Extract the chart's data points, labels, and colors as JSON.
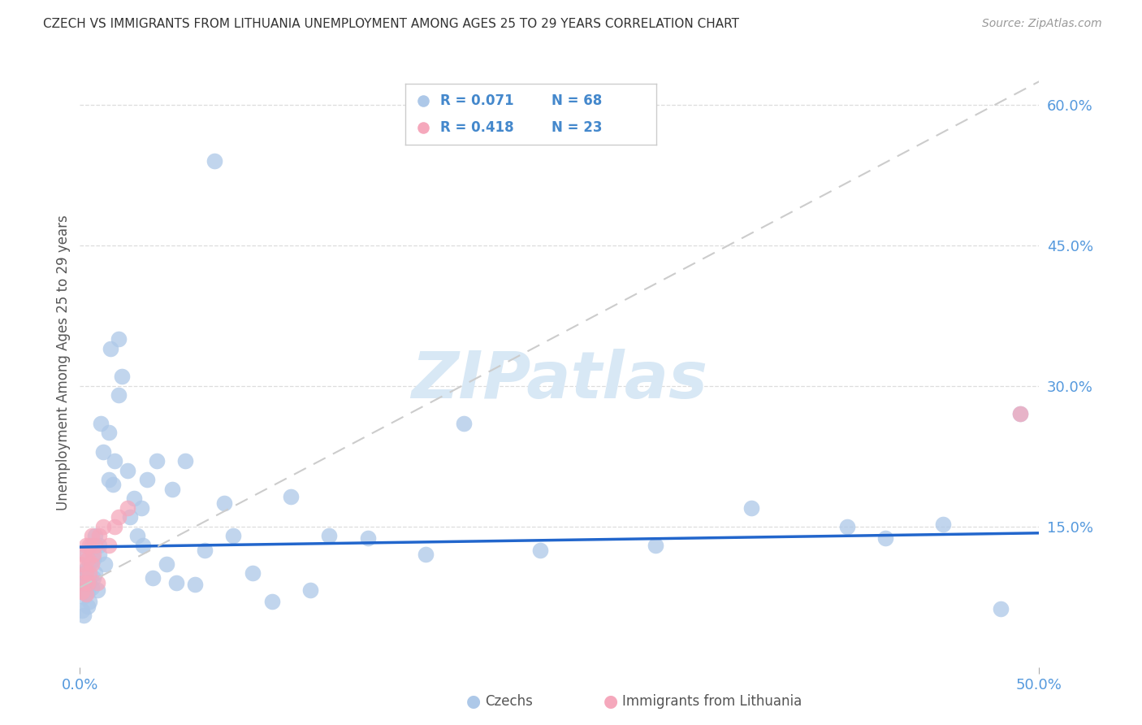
{
  "title": "CZECH VS IMMIGRANTS FROM LITHUANIA UNEMPLOYMENT AMONG AGES 25 TO 29 YEARS CORRELATION CHART",
  "source": "Source: ZipAtlas.com",
  "ylabel": "Unemployment Among Ages 25 to 29 years",
  "legend_czechs": "Czechs",
  "legend_immigrants": "Immigrants from Lithuania",
  "legend_r_czechs": "0.071",
  "legend_n_czechs": "68",
  "legend_r_immigrants": "0.418",
  "legend_n_immigrants": "23",
  "czechs_color": "#adc8e8",
  "czechs_edge_color": "#adc8e8",
  "immigrants_color": "#f5a8bc",
  "immigrants_edge_color": "#f5a8bc",
  "trend_czechs_color": "#2266cc",
  "trend_immigrants_color": "#cccccc",
  "trend_immigrants_linestyle": "dashed",
  "watermark": "ZIPatlas",
  "watermark_color": "#d8e8f5",
  "xmin": 0.0,
  "xmax": 0.5,
  "ymin": 0.0,
  "ymax": 0.65,
  "ytick_vals": [
    0.15,
    0.3,
    0.45,
    0.6
  ],
  "ytick_labels": [
    "15.0%",
    "30.0%",
    "45.0%",
    "60.0%"
  ],
  "xtick_vals": [
    0.0,
    0.5
  ],
  "xtick_labels": [
    "0.0%",
    "50.0%"
  ],
  "grid_color": "#dddddd",
  "tick_color": "#aaaaaa",
  "axis_label_color": "#555555",
  "right_tick_color": "#5599dd",
  "bottom_tick_color": "#5599dd",
  "intercept_czechs": 0.128,
  "slope_czechs": 0.03,
  "intercept_immigrants": 0.085,
  "slope_immigrants": 1.08,
  "czechs_x": [
    0.001,
    0.001,
    0.001,
    0.002,
    0.002,
    0.002,
    0.003,
    0.003,
    0.003,
    0.004,
    0.004,
    0.005,
    0.005,
    0.005,
    0.006,
    0.006,
    0.007,
    0.007,
    0.008,
    0.008,
    0.009,
    0.01,
    0.01,
    0.011,
    0.012,
    0.013,
    0.015,
    0.015,
    0.016,
    0.017,
    0.018,
    0.02,
    0.02,
    0.022,
    0.025,
    0.026,
    0.028,
    0.03,
    0.032,
    0.033,
    0.035,
    0.038,
    0.04,
    0.045,
    0.048,
    0.05,
    0.055,
    0.06,
    0.065,
    0.07,
    0.075,
    0.08,
    0.09,
    0.1,
    0.11,
    0.12,
    0.13,
    0.15,
    0.18,
    0.2,
    0.24,
    0.3,
    0.35,
    0.4,
    0.42,
    0.45,
    0.48,
    0.49
  ],
  "czechs_y": [
    0.09,
    0.06,
    0.08,
    0.075,
    0.1,
    0.055,
    0.085,
    0.105,
    0.12,
    0.08,
    0.065,
    0.09,
    0.11,
    0.07,
    0.085,
    0.13,
    0.095,
    0.115,
    0.1,
    0.14,
    0.082,
    0.13,
    0.12,
    0.26,
    0.23,
    0.11,
    0.25,
    0.2,
    0.34,
    0.195,
    0.22,
    0.29,
    0.35,
    0.31,
    0.21,
    0.16,
    0.18,
    0.14,
    0.17,
    0.13,
    0.2,
    0.095,
    0.22,
    0.11,
    0.19,
    0.09,
    0.22,
    0.088,
    0.125,
    0.54,
    0.175,
    0.14,
    0.1,
    0.07,
    0.182,
    0.082,
    0.14,
    0.138,
    0.12,
    0.26,
    0.125,
    0.13,
    0.17,
    0.15,
    0.138,
    0.152,
    0.062,
    0.27
  ],
  "immigrants_x": [
    0.001,
    0.001,
    0.002,
    0.002,
    0.003,
    0.003,
    0.003,
    0.004,
    0.004,
    0.005,
    0.005,
    0.006,
    0.006,
    0.007,
    0.008,
    0.009,
    0.01,
    0.012,
    0.015,
    0.018,
    0.02,
    0.025,
    0.49
  ],
  "immigrants_y": [
    0.08,
    0.11,
    0.09,
    0.12,
    0.078,
    0.1,
    0.13,
    0.09,
    0.115,
    0.1,
    0.13,
    0.11,
    0.14,
    0.12,
    0.13,
    0.09,
    0.14,
    0.15,
    0.13,
    0.15,
    0.16,
    0.17,
    0.27
  ]
}
